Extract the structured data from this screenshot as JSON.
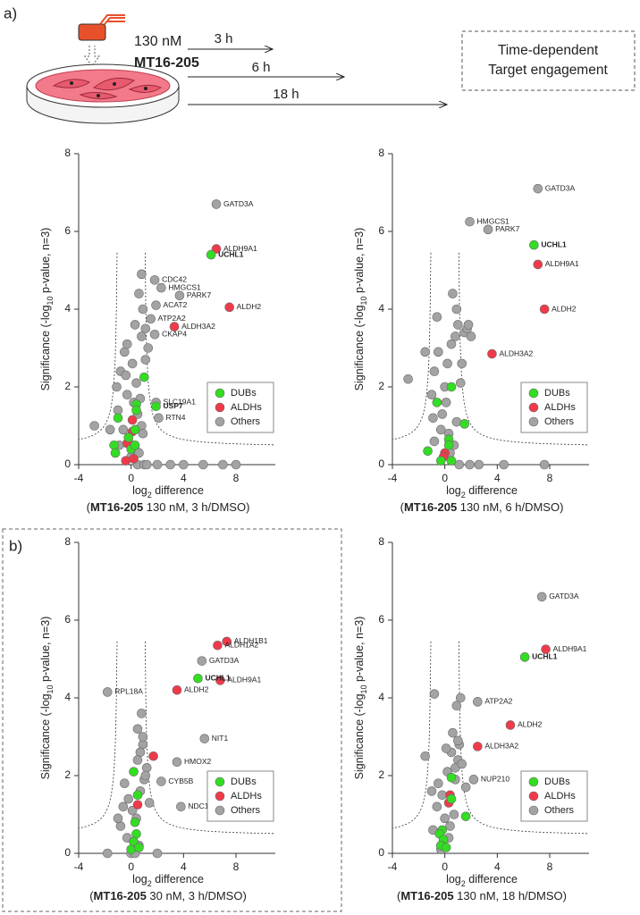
{
  "panel_labels": [
    "a)",
    "b)"
  ],
  "schematic": {
    "concentration": "130 nM",
    "compound": "MT16-205",
    "times": [
      "3 h",
      "6 h",
      "18 h"
    ],
    "box_text": [
      "Time-dependent",
      "Target engagement"
    ]
  },
  "chart_data": [
    {
      "type": "scatter",
      "y_label": {
        "pre": "Significance (-log",
        "sub": "10",
        "post": " p-value, n=3)"
      },
      "x_label": {
        "pre": "log",
        "sub": "2",
        "post": " difference"
      },
      "caption": {
        "open": "(",
        "compound": "MT16-205",
        "rest": " 130 nM, 3 h/DMSO)"
      },
      "xlim": [
        -4,
        11
      ],
      "ylim": [
        0,
        8
      ],
      "xticks": [
        -4,
        0,
        4,
        8
      ],
      "yticks": [
        0,
        2,
        4,
        6,
        8
      ],
      "grid": false,
      "legend": "lower right",
      "series": [
        {
          "name": "DUBs",
          "color": "#33dd22",
          "label_color": "#22a01a",
          "label_bold": true,
          "x": [
            6.1,
            1.9,
            1.0,
            0.4,
            0.4,
            -1.0,
            -1.3,
            -1.2,
            -0.2,
            0.0,
            0.3,
            0.3
          ],
          "values": [
            5.4,
            1.5,
            2.25,
            1.55,
            1.4,
            1.2,
            0.5,
            0.3,
            0.7,
            0.4,
            0.5,
            0.9
          ],
          "point_labels": [
            "UCHL1",
            "USP7",
            null,
            null,
            null,
            null,
            null,
            null,
            null,
            null,
            null,
            null
          ]
        },
        {
          "name": "ALDHs",
          "color": "#f03a4a",
          "label_color": "#222222",
          "label_bold": false,
          "x": [
            6.5,
            7.5,
            3.3,
            0.1,
            0.1,
            -0.3,
            0.2,
            -0.4
          ],
          "values": [
            5.55,
            4.05,
            3.55,
            1.15,
            0.85,
            0.55,
            0.15,
            0.1
          ],
          "point_labels": [
            "ALDH9A1",
            "ALDH2",
            "ALDH3A2",
            null,
            null,
            null,
            null,
            null
          ]
        },
        {
          "name": "Others",
          "color": "#a3a3a3",
          "label_color": "#222222",
          "label_bold": false,
          "x": [
            6.5,
            1.8,
            2.3,
            3.7,
            1.9,
            1.5,
            1.8,
            1.9,
            2.1,
            -0.5,
            -0.8,
            -1.1,
            -0.3,
            0.2,
            0.5,
            0.8,
            -0.6,
            -0.2,
            0.3,
            0.6,
            0.9,
            1.1,
            -1.0,
            -0.4,
            0.1,
            0.4,
            0.7,
            1.3,
            -1.6,
            -0.9,
            0.0,
            0.5,
            1.0,
            1.2,
            0.8,
            0.3,
            -0.3,
            -2.8,
            2.0,
            3.0,
            4.0,
            5.5,
            7.0,
            8.0,
            0.8,
            0.6,
            0.9,
            1.1
          ],
          "values": [
            6.7,
            4.75,
            4.55,
            4.35,
            4.1,
            3.75,
            3.35,
            1.6,
            1.2,
            2.9,
            2.4,
            2.0,
            1.8,
            1.6,
            1.3,
            1.0,
            0.9,
            0.6,
            0.4,
            0.3,
            0.8,
            2.7,
            1.4,
            2.3,
            2.6,
            2.1,
            1.7,
            3.0,
            0.9,
            0.5,
            0.2,
            0.0,
            0.0,
            0.0,
            3.3,
            3.6,
            3.1,
            1.0,
            0,
            0,
            0,
            0,
            0,
            0,
            4.9,
            4.4,
            4.0,
            3.5
          ],
          "point_labels": [
            "GATD3A",
            "CDC42",
            "HMGCS1",
            "PARK7",
            "ACAT2",
            "ATP2A2",
            "CKAP4",
            "SLC19A1",
            "RTN4",
            null,
            null,
            null,
            null,
            null,
            null,
            null,
            null,
            null,
            null,
            null,
            null,
            null,
            null,
            null,
            null,
            null,
            null,
            null,
            null,
            null,
            null,
            null,
            null,
            null,
            null,
            null,
            null,
            null,
            null,
            null,
            null,
            null,
            null,
            null,
            null,
            null,
            null,
            null
          ]
        }
      ]
    },
    {
      "type": "scatter",
      "y_label": {
        "pre": "Significance (-log",
        "sub": "10",
        "post": " p-value, n=3)"
      },
      "x_label": {
        "pre": "log",
        "sub": "2",
        "post": " difference"
      },
      "caption": {
        "open": "(",
        "compound": "MT16-205",
        "rest": " 130 nM, 6 h/DMSO)"
      },
      "xlim": [
        -4,
        11
      ],
      "ylim": [
        0,
        8
      ],
      "xticks": [
        -4,
        0,
        4,
        8
      ],
      "yticks": [
        0,
        2,
        4,
        6,
        8
      ],
      "grid": false,
      "legend": "lower right",
      "series": [
        {
          "name": "DUBs",
          "color": "#33dd22",
          "label_color": "#22a01a",
          "label_bold": true,
          "x": [
            6.8,
            0.5,
            -0.6,
            1.5,
            -1.3,
            0.3,
            0.3,
            -0.3,
            0.5
          ],
          "values": [
            5.65,
            2.0,
            1.6,
            1.05,
            0.35,
            0.65,
            0.5,
            0.1,
            0.1
          ],
          "point_labels": [
            "UCHL1",
            null,
            null,
            null,
            null,
            null,
            null,
            null,
            null
          ]
        },
        {
          "name": "ALDHs",
          "color": "#f03a4a",
          "label_color": "#222222",
          "label_bold": false,
          "x": [
            7.1,
            7.6,
            3.6,
            0.0,
            -0.1
          ],
          "values": [
            5.15,
            4.0,
            2.85,
            0.3,
            0.2
          ],
          "point_labels": [
            "ALDH9A1",
            "ALDH2",
            "ALDH3A2",
            null,
            null
          ]
        },
        {
          "name": "Others",
          "color": "#a3a3a3",
          "label_color": "#222222",
          "label_bold": false,
          "x": [
            7.1,
            1.9,
            3.3,
            -0.8,
            -1.0,
            -0.5,
            -0.2,
            0.2,
            0.5,
            0.8,
            1.0,
            1.2,
            1.5,
            1.7,
            2.0,
            -2.8,
            -1.5,
            -0.9,
            0.3,
            0.6,
            0.9,
            1.3,
            1.8,
            -0.6,
            0.1,
            0.4,
            0.7,
            -0.3,
            1.9,
            2.6,
            4.5,
            7.6,
            1.1,
            0.9,
            -0.8,
            0.0
          ],
          "values": [
            7.1,
            6.25,
            6.05,
            2.4,
            1.8,
            2.9,
            1.3,
            2.6,
            3.1,
            3.3,
            3.6,
            2.1,
            3.4,
            3.5,
            3.3,
            2.2,
            2.9,
            1.2,
            0.8,
            4.4,
            4.0,
            2.6,
            3.6,
            3.8,
            1.6,
            0.3,
            0.5,
            0.9,
            0,
            0,
            0,
            0,
            0,
            1.1,
            0.6,
            2.0
          ],
          "point_labels": [
            "GATD3A",
            "HMGCS1",
            "PARK7",
            null,
            null,
            null,
            null,
            null,
            null,
            null,
            null,
            null,
            null,
            null,
            null,
            null,
            null,
            null,
            null,
            null,
            null,
            null,
            null,
            null,
            null,
            null,
            null,
            null,
            null,
            null,
            null,
            null,
            null,
            null,
            null,
            null
          ]
        }
      ]
    },
    {
      "type": "scatter",
      "y_label": {
        "pre": "Significance (-log",
        "sub": "10",
        "post": " p-value, n=3)"
      },
      "x_label": {
        "pre": "log",
        "sub": "2",
        "post": " difference"
      },
      "caption": {
        "open": "(",
        "compound": "MT16-205",
        "rest": " 30 nM, 3 h/DMSO)"
      },
      "xlim": [
        -4,
        11
      ],
      "ylim": [
        0,
        8
      ],
      "xticks": [
        -4,
        0,
        4,
        8
      ],
      "yticks": [
        0,
        2,
        4,
        6,
        8
      ],
      "grid": false,
      "legend": "lower right",
      "series": [
        {
          "name": "DUBs",
          "color": "#33dd22",
          "label_color": "#22a01a",
          "label_bold": true,
          "x": [
            5.1,
            0.2,
            0.5,
            0.3,
            0.4,
            0.2,
            0.0,
            0.6
          ],
          "values": [
            4.5,
            2.1,
            1.5,
            0.8,
            0.5,
            0.3,
            0.1,
            0.15
          ],
          "point_labels": [
            "UCHL1",
            null,
            null,
            null,
            null,
            null,
            null,
            null
          ]
        },
        {
          "name": "ALDHs",
          "color": "#f03a4a",
          "label_color": "#222222",
          "label_bold": false,
          "x": [
            7.3,
            6.6,
            6.8,
            3.5,
            1.7,
            0.5
          ],
          "values": [
            5.45,
            5.35,
            4.45,
            4.2,
            2.5,
            1.25
          ],
          "point_labels": [
            "ALDH1B1",
            "ALDH1A2",
            "ALDH9A1",
            "ALDH2",
            null,
            null
          ]
        },
        {
          "name": "Others",
          "color": "#a3a3a3",
          "label_color": "#222222",
          "label_bold": false,
          "x": [
            5.4,
            -1.8,
            5.6,
            3.5,
            2.3,
            3.8,
            -0.5,
            -0.2,
            0.1,
            0.4,
            0.7,
            1.0,
            -0.8,
            -0.3,
            0.2,
            0.6,
            0.9,
            1.2,
            0.5,
            0.8,
            0.9,
            0.7,
            1.1,
            1.4,
            -0.6,
            0.0,
            0.3,
            -1.8,
            2.0,
            -1.0,
            0.5
          ],
          "values": [
            4.95,
            4.15,
            2.95,
            2.35,
            1.85,
            1.2,
            1.8,
            1.4,
            1.1,
            0.9,
            1.6,
            1.9,
            0.7,
            0.4,
            0.3,
            0.2,
            2.8,
            2.2,
            3.2,
            3.6,
            3.0,
            2.6,
            2.0,
            1.3,
            1.2,
            0.0,
            0.0,
            0,
            0,
            0.9,
            2.4
          ],
          "point_labels": [
            "GATD3A",
            "RPL18A",
            "NIT1",
            "HMOX2",
            "CYB5B",
            "NDC1",
            null,
            null,
            null,
            null,
            null,
            null,
            null,
            null,
            null,
            null,
            null,
            null,
            null,
            null,
            null,
            null,
            null,
            null,
            null,
            null,
            null,
            null,
            null,
            null,
            null
          ]
        }
      ]
    },
    {
      "type": "scatter",
      "y_label": {
        "pre": "Significance (-log",
        "sub": "10",
        "post": " p-value, n=3)"
      },
      "x_label": {
        "pre": "log",
        "sub": "2",
        "post": " difference"
      },
      "caption": {
        "open": "(",
        "compound": "MT16-205",
        "rest": " 130 nM, 18 h/DMSO)"
      },
      "xlim": [
        -4,
        11
      ],
      "ylim": [
        0,
        8
      ],
      "xticks": [
        -4,
        0,
        4,
        8
      ],
      "yticks": [
        0,
        2,
        4,
        6,
        8
      ],
      "grid": false,
      "legend": "lower right",
      "series": [
        {
          "name": "DUBs",
          "color": "#33dd22",
          "label_color": "#22a01a",
          "label_bold": true,
          "x": [
            6.1,
            0.5,
            0.5,
            1.6,
            -0.2,
            -0.4,
            -0.1,
            -0.3,
            0.1
          ],
          "values": [
            5.05,
            1.95,
            1.4,
            0.95,
            0.6,
            0.5,
            0.35,
            0.2,
            0.15
          ],
          "point_labels": [
            "UCHL1",
            null,
            null,
            null,
            null,
            null,
            null,
            null,
            null
          ]
        },
        {
          "name": "ALDHs",
          "color": "#f03a4a",
          "label_color": "#222222",
          "label_bold": false,
          "x": [
            7.7,
            5.0,
            2.5,
            0.4,
            0.3
          ],
          "values": [
            5.25,
            3.3,
            2.75,
            1.5,
            1.3
          ],
          "point_labels": [
            "ALDH9A1",
            "ALDH2",
            "ALDH3A2",
            null,
            null
          ]
        },
        {
          "name": "Others",
          "color": "#a3a3a3",
          "label_color": "#222222",
          "label_bold": false,
          "x": [
            7.4,
            2.5,
            2.2,
            -0.8,
            1.2,
            0.9,
            1.0,
            -0.5,
            -0.2,
            0.2,
            0.5,
            0.8,
            1.1,
            -1.5,
            -1.0,
            -0.6,
            0.0,
            0.4,
            0.7,
            1.3,
            1.6,
            0.3,
            -0.3,
            0.6,
            1.0,
            0.8,
            -0.9,
            0.1
          ],
          "values": [
            6.6,
            3.9,
            1.9,
            4.1,
            4.0,
            3.8,
            2.4,
            1.8,
            1.5,
            2.1,
            2.6,
            2.2,
            2.8,
            2.5,
            1.6,
            1.2,
            0.9,
            0.7,
            1.0,
            2.3,
            1.7,
            0.4,
            0.1,
            3.1,
            2.9,
            1.9,
            0.6,
            2.7
          ],
          "point_labels": [
            "GATD3A",
            "ATP2A2",
            "NUP210",
            null,
            null,
            null,
            null,
            null,
            null,
            null,
            null,
            null,
            null,
            null,
            null,
            null,
            null,
            null,
            null,
            null,
            null,
            null,
            null,
            null,
            null,
            null,
            null,
            null
          ]
        }
      ]
    }
  ]
}
